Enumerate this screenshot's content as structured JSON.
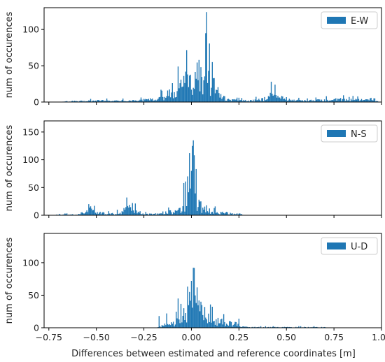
{
  "figure": {
    "xlabel": "Differences between estimated and reference coordinates [m]",
    "bar_color": "#1f77b4",
    "axis_color": "#000000",
    "background": "#ffffff"
  },
  "chart_data": [
    {
      "type": "histogram",
      "legend": "E-W",
      "legend_position": "upper right",
      "ylabel": "num of occurences",
      "xlim": [
        -0.775,
        1.0
      ],
      "ylim": [
        0,
        130
      ],
      "yticks": [
        0,
        50,
        100
      ],
      "ytick_labels": [
        "0",
        "50",
        "100"
      ],
      "x_tick_labels_shown": false,
      "envelope": [
        [
          -0.7,
          0
        ],
        [
          -0.66,
          1
        ],
        [
          -0.5,
          2
        ],
        [
          -0.3,
          2
        ],
        [
          -0.2,
          4
        ],
        [
          -0.15,
          7
        ],
        [
          -0.1,
          15
        ],
        [
          -0.05,
          25
        ],
        [
          0.0,
          35
        ],
        [
          0.05,
          40
        ],
        [
          0.08,
          40
        ],
        [
          0.12,
          25
        ],
        [
          0.16,
          8
        ],
        [
          0.2,
          3
        ],
        [
          0.3,
          2
        ],
        [
          0.38,
          4
        ],
        [
          0.42,
          10
        ],
        [
          0.46,
          8
        ],
        [
          0.52,
          3
        ],
        [
          0.6,
          2
        ],
        [
          0.7,
          3
        ],
        [
          0.8,
          4
        ],
        [
          0.9,
          3
        ],
        [
          0.97,
          2
        ],
        [
          0.99,
          0
        ]
      ],
      "spikes": [
        [
          0.08,
          124
        ],
        [
          0.075,
          84
        ],
        [
          0.095,
          61
        ],
        [
          0.11,
          55
        ],
        [
          0.04,
          58
        ],
        [
          0.05,
          48
        ],
        [
          0.09,
          43
        ],
        [
          0.065,
          30
        ],
        [
          -0.02,
          38
        ],
        [
          -0.1,
          26
        ],
        [
          -0.16,
          17
        ],
        [
          0.42,
          28
        ],
        [
          0.44,
          24
        ],
        [
          0.71,
          8
        ],
        [
          0.83,
          7
        ],
        [
          0.94,
          5
        ]
      ]
    },
    {
      "type": "histogram",
      "legend": "N-S",
      "legend_position": "upper right",
      "ylabel": "num of occurences",
      "xlim": [
        -0.775,
        1.0
      ],
      "ylim": [
        0,
        170
      ],
      "yticks": [
        0,
        50,
        100,
        150
      ],
      "ytick_labels": [
        "0",
        "50",
        "100",
        "150"
      ],
      "x_tick_labels_shown": false,
      "envelope": [
        [
          -0.72,
          0
        ],
        [
          -0.7,
          1
        ],
        [
          -0.6,
          2
        ],
        [
          -0.56,
          6
        ],
        [
          -0.53,
          12
        ],
        [
          -0.5,
          7
        ],
        [
          -0.45,
          3
        ],
        [
          -0.4,
          3
        ],
        [
          -0.36,
          8
        ],
        [
          -0.33,
          15
        ],
        [
          -0.3,
          10
        ],
        [
          -0.27,
          3
        ],
        [
          -0.2,
          2
        ],
        [
          -0.17,
          4
        ],
        [
          -0.1,
          7
        ],
        [
          -0.05,
          10
        ],
        [
          -0.03,
          25
        ],
        [
          0.0,
          45
        ],
        [
          0.02,
          40
        ],
        [
          0.04,
          20
        ],
        [
          0.06,
          12
        ],
        [
          0.1,
          8
        ],
        [
          0.15,
          5
        ],
        [
          0.2,
          4
        ],
        [
          0.25,
          3
        ],
        [
          0.28,
          0
        ]
      ],
      "spikes": [
        [
          -0.54,
          20
        ],
        [
          -0.51,
          17
        ],
        [
          -0.34,
          32
        ],
        [
          -0.31,
          22
        ],
        [
          -0.12,
          14
        ],
        [
          -0.04,
          58
        ],
        [
          -0.02,
          70
        ],
        [
          -0.01,
          112
        ],
        [
          0.0,
          80
        ],
        [
          0.005,
          125
        ],
        [
          0.01,
          135
        ],
        [
          0.015,
          108
        ],
        [
          0.025,
          68
        ],
        [
          0.05,
          25
        ],
        [
          0.08,
          18
        ],
        [
          0.12,
          13
        ]
      ]
    },
    {
      "type": "histogram",
      "legend": "U-D",
      "legend_position": "upper right",
      "ylabel": "num of occurences",
      "xlim": [
        -0.775,
        1.0
      ],
      "ylim": [
        0,
        145
      ],
      "yticks": [
        0,
        50,
        100
      ],
      "ytick_labels": [
        "0",
        "50",
        "100"
      ],
      "x_tick_labels_shown": true,
      "xticks": [
        -0.75,
        -0.5,
        -0.25,
        0.0,
        0.25,
        0.5,
        0.75,
        1.0
      ],
      "xtick_labels": [
        "−0.75",
        "−0.50",
        "−0.25",
        "0.00",
        "0.25",
        "0.50",
        "0.75",
        "1.00"
      ],
      "envelope": [
        [
          -0.18,
          0
        ],
        [
          -0.16,
          3
        ],
        [
          -0.12,
          6
        ],
        [
          -0.08,
          10
        ],
        [
          -0.05,
          16
        ],
        [
          -0.03,
          22
        ],
        [
          0.0,
          35
        ],
        [
          0.02,
          40
        ],
        [
          0.05,
          28
        ],
        [
          0.08,
          18
        ],
        [
          0.12,
          12
        ],
        [
          0.16,
          9
        ],
        [
          0.2,
          8
        ],
        [
          0.24,
          6
        ],
        [
          0.26,
          2
        ],
        [
          0.3,
          1
        ],
        [
          0.7,
          1
        ],
        [
          0.72,
          0
        ]
      ],
      "spikes": [
        [
          -0.17,
          18
        ],
        [
          -0.13,
          22
        ],
        [
          -0.07,
          45
        ],
        [
          -0.04,
          30
        ],
        [
          -0.02,
          38
        ],
        [
          -0.01,
          55
        ],
        [
          0.0,
          72
        ],
        [
          0.01,
          84
        ],
        [
          0.015,
          92
        ],
        [
          0.03,
          62
        ],
        [
          0.05,
          40
        ],
        [
          0.07,
          32
        ],
        [
          0.1,
          30
        ],
        [
          0.16,
          14
        ],
        [
          0.25,
          14
        ]
      ]
    }
  ]
}
